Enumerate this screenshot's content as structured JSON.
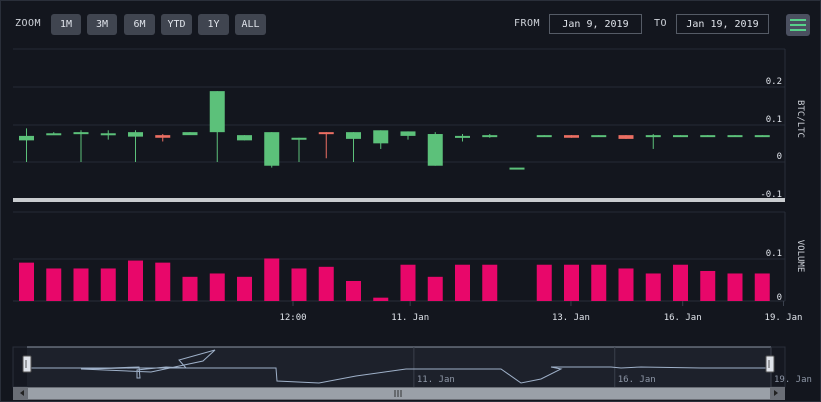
{
  "toolbar": {
    "zoom_label": "ZOOM",
    "zoom_buttons": [
      "1M",
      "3M",
      "6M",
      "YTD",
      "1Y",
      "ALL"
    ],
    "from_label": "FROM",
    "from_value": "Jan 9, 2019",
    "to_label": "TO",
    "to_value": "Jan 19, 2019",
    "menu_icon": "hamburger-menu-icon"
  },
  "colors": {
    "up": "#5cc17a",
    "down": "#ec6f63",
    "volume": "#e8076a",
    "separator": "#c9cccf",
    "navigator_line": "#9fb1c9"
  },
  "chart_data": [
    {
      "type": "candlestick",
      "ylabel": "BTC/LTC",
      "yticks": [
        "0.2",
        "0.1",
        "0",
        "-0.1"
      ],
      "ylim": [
        -0.11,
        0.225
      ],
      "x": [
        0,
        1,
        2,
        3,
        4,
        5,
        6,
        7,
        8,
        9,
        10,
        11,
        12,
        13,
        14,
        15,
        16,
        17,
        18,
        19,
        20,
        21,
        22,
        23,
        24,
        25,
        26,
        27
      ],
      "candles": [
        {
          "o": 0.058,
          "h": 0.09,
          "l": 0.0,
          "c": 0.07
        },
        {
          "o": 0.075,
          "h": 0.08,
          "l": 0.075,
          "c": 0.077
        },
        {
          "o": 0.078,
          "h": 0.085,
          "l": 0.0,
          "c": 0.08
        },
        {
          "o": 0.075,
          "h": 0.085,
          "l": 0.06,
          "c": 0.077
        },
        {
          "o": 0.068,
          "h": 0.085,
          "l": 0.0,
          "c": 0.08
        },
        {
          "o": 0.072,
          "h": 0.075,
          "l": 0.055,
          "c": 0.065
        },
        {
          "o": 0.072,
          "h": 0.08,
          "l": 0.075,
          "c": 0.08
        },
        {
          "o": 0.08,
          "h": 0.19,
          "l": 0.0,
          "c": 0.19
        },
        {
          "o": 0.058,
          "h": 0.072,
          "l": 0.058,
          "c": 0.072
        },
        {
          "o": -0.01,
          "h": 0.08,
          "l": -0.015,
          "c": 0.08
        },
        {
          "o": 0.06,
          "h": 0.065,
          "l": 0.0,
          "c": 0.065
        },
        {
          "o": 0.08,
          "h": 0.08,
          "l": 0.01,
          "c": 0.078
        },
        {
          "o": 0.062,
          "h": 0.08,
          "l": 0.0,
          "c": 0.08
        },
        {
          "o": 0.05,
          "h": 0.085,
          "l": 0.035,
          "c": 0.085
        },
        {
          "o": 0.07,
          "h": 0.082,
          "l": 0.06,
          "c": 0.082
        },
        {
          "o": -0.01,
          "h": 0.08,
          "l": -0.01,
          "c": 0.075
        },
        {
          "o": 0.068,
          "h": 0.075,
          "l": 0.055,
          "c": 0.07
        },
        {
          "o": 0.068,
          "h": 0.075,
          "l": 0.065,
          "c": 0.072
        },
        {
          "o": -0.015,
          "h": -0.015,
          "l": -0.015,
          "c": -0.015
        },
        {
          "o": 0.068,
          "h": 0.072,
          "l": 0.068,
          "c": 0.072
        },
        {
          "o": 0.072,
          "h": 0.072,
          "l": 0.065,
          "c": 0.065
        },
        {
          "o": 0.07,
          "h": 0.072,
          "l": 0.07,
          "c": 0.072
        },
        {
          "o": 0.072,
          "h": 0.072,
          "l": 0.062,
          "c": 0.062
        },
        {
          "o": 0.068,
          "h": 0.075,
          "l": 0.035,
          "c": 0.072
        },
        {
          "o": 0.07,
          "h": 0.072,
          "l": 0.07,
          "c": 0.072
        },
        {
          "o": 0.07,
          "h": 0.072,
          "l": 0.07,
          "c": 0.072
        },
        {
          "o": 0.07,
          "h": 0.072,
          "l": 0.07,
          "c": 0.072
        },
        {
          "o": 0.068,
          "h": 0.072,
          "l": 0.068,
          "c": 0.072
        }
      ]
    },
    {
      "type": "bar",
      "ylabel": "VOLUME",
      "yticks": [
        "0.1",
        "0"
      ],
      "ylim": [
        0,
        0.13
      ],
      "values": [
        0.092,
        0.078,
        0.078,
        0.078,
        0.097,
        0.092,
        0.058,
        0.066,
        0.058,
        0.102,
        0.078,
        0.082,
        0.048,
        0.008,
        0.087,
        0.058,
        0.087,
        0.087,
        0,
        0.087,
        0.087,
        0.087,
        0.078,
        0.066,
        0.087,
        0.072,
        0.066,
        0.066
      ],
      "xticks": [
        {
          "x": 10,
          "label": "12:00"
        },
        {
          "x": 14.3,
          "label": "11. Jan"
        },
        {
          "x": 20.2,
          "label": "13. Jan"
        },
        {
          "x": 24.3,
          "label": "16. Jan"
        },
        {
          "x": 28,
          "label": "19. Jan"
        }
      ]
    },
    {
      "type": "navigator",
      "xticks": [
        {
          "t": 0.52,
          "label": "11. Jan"
        },
        {
          "t": 0.79,
          "label": "16. Jan"
        },
        {
          "t": 1.0,
          "label": "19. Jan"
        }
      ],
      "scroll_grip_icon": "grip-icon",
      "left_arrow_icon": "left-arrow-icon",
      "right_arrow_icon": "right-arrow-icon"
    }
  ]
}
